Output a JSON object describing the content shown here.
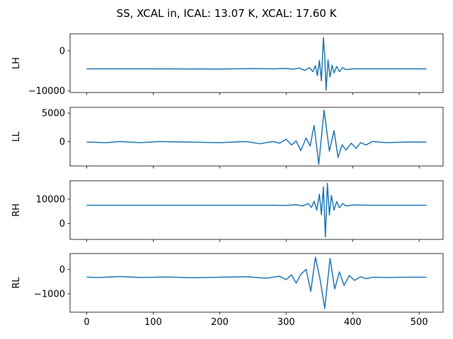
{
  "figure": {
    "title": "SS, XCAL in, ICAL: 13.07 K, XCAL: 17.60 K",
    "line_color": "#1f77b4"
  },
  "chart_data": [
    {
      "type": "line",
      "ylabel": "LH",
      "xlim": [
        -25,
        536
      ],
      "ylim": [
        -10400,
        4200
      ],
      "yticks": [
        0,
        -10000
      ],
      "ytick_labels": [
        "0",
        "−10000"
      ],
      "xticks": [
        0,
        100,
        200,
        300,
        400,
        500
      ],
      "xtick_labels": [],
      "x": [
        0,
        100,
        200,
        250,
        280,
        300,
        310,
        320,
        328,
        335,
        340,
        344,
        347,
        350,
        353,
        356,
        358,
        360,
        363,
        366,
        369,
        372,
        376,
        380,
        385,
        390,
        400,
        430,
        511
      ],
      "y": [
        -4500,
        -4500,
        -4550,
        -4450,
        -4500,
        -4400,
        -4600,
        -4300,
        -4900,
        -4200,
        -5200,
        -3700,
        -6200,
        -2400,
        -7500,
        3300,
        -1000,
        -9800,
        -2300,
        -6500,
        -3600,
        -5500,
        -3900,
        -5200,
        -4200,
        -4700,
        -4500,
        -4500,
        -4500
      ]
    },
    {
      "type": "line",
      "ylabel": "LL",
      "xlim": [
        -25,
        536
      ],
      "ylim": [
        -4300,
        6000
      ],
      "yticks": [
        5000,
        0
      ],
      "ytick_labels": [
        "5000",
        "0"
      ],
      "xticks": [
        0,
        100,
        200,
        300,
        400,
        500
      ],
      "xtick_labels": [],
      "x": [
        0,
        30,
        50,
        80,
        110,
        150,
        200,
        240,
        260,
        280,
        290,
        300,
        308,
        315,
        322,
        330,
        336,
        342,
        349,
        357,
        365,
        372,
        378,
        384,
        390,
        398,
        405,
        412,
        420,
        430,
        450,
        480,
        511
      ],
      "y": [
        -100,
        -200,
        0,
        -200,
        0,
        -100,
        -200,
        0,
        -400,
        0,
        -300,
        400,
        -600,
        100,
        -1600,
        600,
        -800,
        2800,
        -4000,
        5500,
        -1700,
        1900,
        -2800,
        -600,
        -1500,
        -300,
        -1200,
        -200,
        -600,
        0,
        -200,
        -100,
        -100
      ]
    },
    {
      "type": "line",
      "ylabel": "RH",
      "xlim": [
        -25,
        536
      ],
      "ylim": [
        -6500,
        17500
      ],
      "yticks": [
        10000,
        0
      ],
      "ytick_labels": [
        "10000",
        "0"
      ],
      "xticks": [
        0,
        100,
        200,
        300,
        400,
        500
      ],
      "xtick_labels": [],
      "x": [
        0,
        100,
        200,
        280,
        300,
        315,
        325,
        333,
        338,
        342,
        346,
        350,
        353,
        356,
        359,
        362,
        365,
        368,
        372,
        376,
        380,
        385,
        390,
        400,
        430,
        511
      ],
      "y": [
        7500,
        7500,
        7500,
        7500,
        7400,
        7700,
        7200,
        8200,
        6600,
        9100,
        5500,
        12000,
        3600,
        15000,
        -5500,
        16500,
        3500,
        11500,
        5500,
        9000,
        6500,
        8200,
        7200,
        7600,
        7500,
        7500
      ]
    },
    {
      "type": "line",
      "ylabel": "RL",
      "xlim": [
        -25,
        536
      ],
      "ylim": [
        -1750,
        650
      ],
      "yticks": [
        0,
        -1000
      ],
      "ytick_labels": [
        "0",
        "−1000"
      ],
      "xticks": [
        0,
        100,
        200,
        300,
        400,
        500
      ],
      "xtick_labels": [
        "0",
        "100",
        "200",
        "300",
        "400",
        "500"
      ],
      "x": [
        0,
        20,
        50,
        80,
        120,
        160,
        200,
        240,
        270,
        290,
        300,
        308,
        315,
        322,
        330,
        337,
        344,
        351,
        358,
        366,
        373,
        380,
        387,
        395,
        403,
        412,
        420,
        430,
        450,
        480,
        511
      ],
      "y": [
        -320,
        -330,
        -290,
        -330,
        -310,
        -340,
        -320,
        -300,
        -360,
        -280,
        -420,
        -220,
        -560,
        -200,
        0,
        -900,
        500,
        -400,
        -1600,
        450,
        -800,
        -100,
        -650,
        -250,
        -450,
        -300,
        -380,
        -320,
        -330,
        -320,
        -320
      ]
    }
  ]
}
